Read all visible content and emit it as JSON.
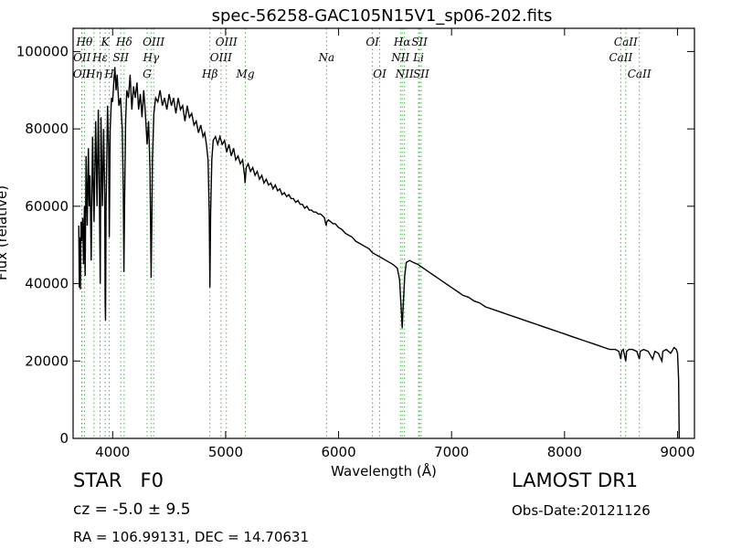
{
  "chart_data": {
    "type": "line",
    "title": "spec-56258-GAC105N15V1_sp06-202.fits",
    "xlabel": "Wavelength (Å)",
    "ylabel": "Flux (relative)",
    "xlim": [
      3650,
      9150
    ],
    "ylim": [
      0,
      106000
    ],
    "xticks": [
      4000,
      5000,
      6000,
      7000,
      8000,
      9000
    ],
    "yticks": [
      0,
      20000,
      40000,
      60000,
      80000,
      100000
    ],
    "grid": false,
    "series": [
      {
        "points": [
          [
            3700,
            55000
          ],
          [
            3705,
            39000
          ],
          [
            3710,
            52000
          ],
          [
            3715,
            38500
          ],
          [
            3720,
            56000
          ],
          [
            3725,
            51000
          ],
          [
            3735,
            57000
          ],
          [
            3742,
            45000
          ],
          [
            3750,
            60000
          ],
          [
            3757,
            42000
          ],
          [
            3765,
            73000
          ],
          [
            3775,
            55000
          ],
          [
            3785,
            75000
          ],
          [
            3792,
            60000
          ],
          [
            3800,
            68000
          ],
          [
            3810,
            46000
          ],
          [
            3822,
            78000
          ],
          [
            3835,
            56000
          ],
          [
            3850,
            82000
          ],
          [
            3862,
            60000
          ],
          [
            3873,
            85000
          ],
          [
            3885,
            55000
          ],
          [
            3890,
            40000
          ],
          [
            3897,
            83000
          ],
          [
            3910,
            60000
          ],
          [
            3920,
            80000
          ],
          [
            3930,
            63000
          ],
          [
            3934,
            35000
          ],
          [
            3937,
            30500
          ],
          [
            3942,
            60000
          ],
          [
            3955,
            86000
          ],
          [
            3965,
            75000
          ],
          [
            3970,
            52000
          ],
          [
            3978,
            80000
          ],
          [
            3990,
            88000
          ],
          [
            4000,
            87000
          ],
          [
            4010,
            92000
          ],
          [
            4020,
            96000
          ],
          [
            4030,
            90000
          ],
          [
            4040,
            94000
          ],
          [
            4055,
            86000
          ],
          [
            4070,
            88000
          ],
          [
            4085,
            80000
          ],
          [
            4095,
            63000
          ],
          [
            4100,
            43000
          ],
          [
            4106,
            62000
          ],
          [
            4115,
            82000
          ],
          [
            4125,
            90000
          ],
          [
            4140,
            88000
          ],
          [
            4155,
            94000
          ],
          [
            4170,
            85000
          ],
          [
            4185,
            91000
          ],
          [
            4200,
            88000
          ],
          [
            4215,
            92000
          ],
          [
            4230,
            85000
          ],
          [
            4245,
            89000
          ],
          [
            4260,
            83000
          ],
          [
            4275,
            90000
          ],
          [
            4290,
            84000
          ],
          [
            4305,
            76000
          ],
          [
            4318,
            82000
          ],
          [
            4330,
            70000
          ],
          [
            4336,
            55000
          ],
          [
            4341,
            41500
          ],
          [
            4346,
            55000
          ],
          [
            4352,
            72000
          ],
          [
            4365,
            84000
          ],
          [
            4380,
            88000
          ],
          [
            4400,
            87000
          ],
          [
            4420,
            90000
          ],
          [
            4440,
            86000
          ],
          [
            4460,
            88000
          ],
          [
            4480,
            85000
          ],
          [
            4500,
            89000
          ],
          [
            4520,
            86000
          ],
          [
            4540,
            88000
          ],
          [
            4560,
            84000
          ],
          [
            4580,
            88000
          ],
          [
            4600,
            85000
          ],
          [
            4620,
            86000
          ],
          [
            4640,
            82000
          ],
          [
            4660,
            86000
          ],
          [
            4680,
            83000
          ],
          [
            4700,
            84000
          ],
          [
            4720,
            81000
          ],
          [
            4740,
            82000
          ],
          [
            4760,
            79000
          ],
          [
            4780,
            81000
          ],
          [
            4800,
            78000
          ],
          [
            4815,
            79000
          ],
          [
            4830,
            76000
          ],
          [
            4845,
            72000
          ],
          [
            4855,
            58000
          ],
          [
            4861,
            39000
          ],
          [
            4867,
            58000
          ],
          [
            4878,
            72000
          ],
          [
            4890,
            77000
          ],
          [
            4910,
            78000
          ],
          [
            4930,
            76000
          ],
          [
            4950,
            78000
          ],
          [
            4970,
            76000
          ],
          [
            4990,
            77000
          ],
          [
            5010,
            74000
          ],
          [
            5030,
            76000
          ],
          [
            5050,
            73000
          ],
          [
            5070,
            75000
          ],
          [
            5090,
            72000
          ],
          [
            5110,
            73000
          ],
          [
            5130,
            71000
          ],
          [
            5150,
            72000
          ],
          [
            5167,
            68000
          ],
          [
            5172,
            66000
          ],
          [
            5183,
            70000
          ],
          [
            5200,
            71000
          ],
          [
            5220,
            69000
          ],
          [
            5240,
            70000
          ],
          [
            5260,
            68000
          ],
          [
            5280,
            69000
          ],
          [
            5300,
            67000
          ],
          [
            5320,
            68000
          ],
          [
            5340,
            66000
          ],
          [
            5360,
            67000
          ],
          [
            5380,
            65500
          ],
          [
            5400,
            66000
          ],
          [
            5420,
            64500
          ],
          [
            5440,
            65500
          ],
          [
            5460,
            64000
          ],
          [
            5480,
            64500
          ],
          [
            5500,
            63000
          ],
          [
            5520,
            63500
          ],
          [
            5540,
            62500
          ],
          [
            5560,
            63000
          ],
          [
            5580,
            62000
          ],
          [
            5600,
            62000
          ],
          [
            5620,
            61000
          ],
          [
            5640,
            61500
          ],
          [
            5660,
            60500
          ],
          [
            5680,
            60500
          ],
          [
            5700,
            59500
          ],
          [
            5720,
            60000
          ],
          [
            5740,
            59000
          ],
          [
            5760,
            59000
          ],
          [
            5780,
            58500
          ],
          [
            5800,
            58500
          ],
          [
            5820,
            58000
          ],
          [
            5840,
            58000
          ],
          [
            5860,
            57500
          ],
          [
            5875,
            57000
          ],
          [
            5890,
            55000
          ],
          [
            5896,
            56000
          ],
          [
            5910,
            56500
          ],
          [
            5930,
            56000
          ],
          [
            5950,
            55500
          ],
          [
            5970,
            55500
          ],
          [
            6000,
            54500
          ],
          [
            6030,
            54000
          ],
          [
            6060,
            53000
          ],
          [
            6090,
            52500
          ],
          [
            6120,
            52000
          ],
          [
            6150,
            51000
          ],
          [
            6180,
            50500
          ],
          [
            6210,
            50000
          ],
          [
            6240,
            49500
          ],
          [
            6270,
            49000
          ],
          [
            6300,
            48000
          ],
          [
            6330,
            47500
          ],
          [
            6360,
            47000
          ],
          [
            6390,
            46500
          ],
          [
            6420,
            46000
          ],
          [
            6450,
            45500
          ],
          [
            6480,
            45000
          ],
          [
            6500,
            44500
          ],
          [
            6520,
            44000
          ],
          [
            6540,
            41000
          ],
          [
            6555,
            33000
          ],
          [
            6563,
            28500
          ],
          [
            6570,
            33000
          ],
          [
            6585,
            42000
          ],
          [
            6600,
            45500
          ],
          [
            6630,
            46000
          ],
          [
            6660,
            45500
          ],
          [
            6700,
            45000
          ],
          [
            6750,
            44000
          ],
          [
            6800,
            43000
          ],
          [
            6850,
            42000
          ],
          [
            6900,
            41000
          ],
          [
            6950,
            40000
          ],
          [
            7000,
            39000
          ],
          [
            7050,
            38000
          ],
          [
            7100,
            37000
          ],
          [
            7150,
            36500
          ],
          [
            7200,
            35500
          ],
          [
            7250,
            35000
          ],
          [
            7300,
            34000
          ],
          [
            7350,
            33500
          ],
          [
            7400,
            33000
          ],
          [
            7450,
            32500
          ],
          [
            7500,
            32000
          ],
          [
            7550,
            31500
          ],
          [
            7600,
            31000
          ],
          [
            7650,
            30500
          ],
          [
            7700,
            30000
          ],
          [
            7750,
            29500
          ],
          [
            7800,
            29000
          ],
          [
            7850,
            28500
          ],
          [
            7900,
            28000
          ],
          [
            7950,
            27500
          ],
          [
            8000,
            27000
          ],
          [
            8050,
            26500
          ],
          [
            8100,
            26000
          ],
          [
            8150,
            25500
          ],
          [
            8200,
            25000
          ],
          [
            8250,
            24500
          ],
          [
            8300,
            24000
          ],
          [
            8350,
            23500
          ],
          [
            8400,
            23000
          ],
          [
            8450,
            23000
          ],
          [
            8480,
            22500
          ],
          [
            8498,
            20500
          ],
          [
            8505,
            22500
          ],
          [
            8520,
            23000
          ],
          [
            8542,
            20000
          ],
          [
            8550,
            22500
          ],
          [
            8570,
            23000
          ],
          [
            8600,
            23000
          ],
          [
            8640,
            22500
          ],
          [
            8662,
            20500
          ],
          [
            8670,
            22500
          ],
          [
            8700,
            23000
          ],
          [
            8740,
            22500
          ],
          [
            8780,
            20500
          ],
          [
            8800,
            22500
          ],
          [
            8830,
            22000
          ],
          [
            8862,
            20000
          ],
          [
            8870,
            22500
          ],
          [
            8900,
            23000
          ],
          [
            8940,
            22000
          ],
          [
            8970,
            23500
          ],
          [
            8990,
            23000
          ],
          [
            9000,
            22000
          ],
          [
            9010,
            15000
          ],
          [
            9015,
            0
          ]
        ]
      }
    ],
    "lines": [
      {
        "label": "OII",
        "wl": 3727,
        "row": 3,
        "color": "#4caf50"
      },
      {
        "label": "OII",
        "wl": 3729,
        "row": 2,
        "color": "#4caf50"
      },
      {
        "label": "Hθ",
        "wl": 3750,
        "row": 1,
        "color": "#4caf50"
      },
      {
        "label": "Hη",
        "wl": 3835,
        "row": 3,
        "color": "#4caf50"
      },
      {
        "label": "Hε",
        "wl": 3889,
        "row": 2,
        "color": "#4caf50"
      },
      {
        "label": "K",
        "wl": 3934,
        "row": 1,
        "color": "#4caf50"
      },
      {
        "label": "H",
        "wl": 3970,
        "row": 3,
        "color": "#4caf50"
      },
      {
        "label": "SII",
        "wl": 4072,
        "row": 2,
        "color": "#4caf50"
      },
      {
        "label": "Hδ",
        "wl": 4102,
        "row": 1,
        "color": "#4caf50"
      },
      {
        "label": "G",
        "wl": 4305,
        "row": 3,
        "color": "#4caf50"
      },
      {
        "label": "Hγ",
        "wl": 4340,
        "row": 2,
        "color": "#4caf50"
      },
      {
        "label": "OIII",
        "wl": 4363,
        "row": 1,
        "color": "#4caf50"
      },
      {
        "label": "Hβ",
        "wl": 4861,
        "row": 3,
        "color": "#4caf50"
      },
      {
        "label": "OIII",
        "wl": 4959,
        "row": 2,
        "color": "#4caf50"
      },
      {
        "label": "OIII",
        "wl": 5007,
        "row": 1,
        "color": "#4caf50"
      },
      {
        "label": "Mg",
        "wl": 5175,
        "row": 3,
        "color": "#4caf50"
      },
      {
        "label": "Na",
        "wl": 5893,
        "row": 2,
        "color": "#4caf50"
      },
      {
        "label": "OI",
        "wl": 6300,
        "row": 1,
        "color": "#4caf50"
      },
      {
        "label": "OI",
        "wl": 6364,
        "row": 3,
        "color": "#4caf50"
      },
      {
        "label": "NII",
        "wl": 6548,
        "row": 2,
        "color": "#4caf50"
      },
      {
        "label": "Hα",
        "wl": 6563,
        "row": 1,
        "color": "#4caf50"
      },
      {
        "label": "NII",
        "wl": 6584,
        "row": 3,
        "color": "#4caf50"
      },
      {
        "label": "Li",
        "wl": 6708,
        "row": 2,
        "color": "#4caf50"
      },
      {
        "label": "SII",
        "wl": 6716,
        "row": 1,
        "color": "#4caf50"
      },
      {
        "label": "SII",
        "wl": 6731,
        "row": 3,
        "color": "#4caf50"
      },
      {
        "label": "CaII",
        "wl": 8498,
        "row": 2,
        "color": "#4caf50"
      },
      {
        "label": "CaII",
        "wl": 8542,
        "row": 1,
        "color": "#4caf50"
      },
      {
        "label": "CaII",
        "wl": 8662,
        "row": 3,
        "color": "#4caf50"
      }
    ]
  },
  "info": {
    "class": "STAR",
    "subclass": "F0",
    "cz": "cz = -5.0 ± 9.5",
    "survey": "LAMOST DR1",
    "obs_date": "Obs-Date:20121126",
    "radec": "RA = 106.99131, DEC = 14.70631"
  }
}
